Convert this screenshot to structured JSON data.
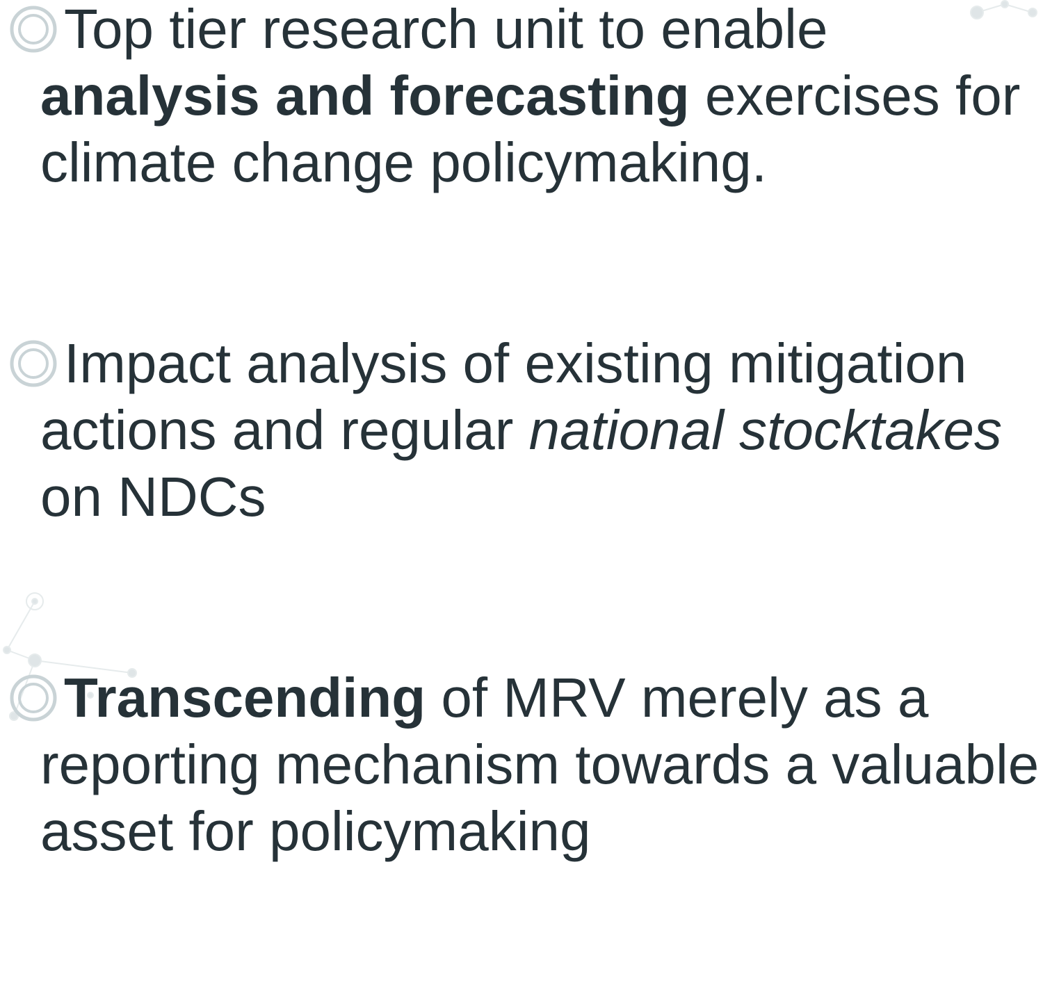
{
  "bullets": [
    {
      "lines": [
        [
          {
            "text": "Top tier research unit to enable"
          }
        ],
        [
          {
            "text": "analysis and forecasting",
            "bold": true
          },
          {
            "text": " exercises for"
          }
        ],
        [
          {
            "text": "climate change policymaking."
          }
        ]
      ]
    },
    {
      "lines": [
        [
          {
            "text": "Impact analysis of existing mitigation"
          }
        ],
        [
          {
            "text": "actions and regular "
          },
          {
            "text": "national stocktakes",
            "italic": true
          }
        ],
        [
          {
            "text": "on NDCs"
          }
        ]
      ]
    },
    {
      "lines": [
        [
          {
            "text": "Transcending",
            "bold": true
          },
          {
            "text": " of MRV merely as a"
          }
        ],
        [
          {
            "text": "reporting mechanism towards a valuable"
          }
        ],
        [
          {
            "text": "asset for policymaking"
          }
        ]
      ]
    }
  ]
}
